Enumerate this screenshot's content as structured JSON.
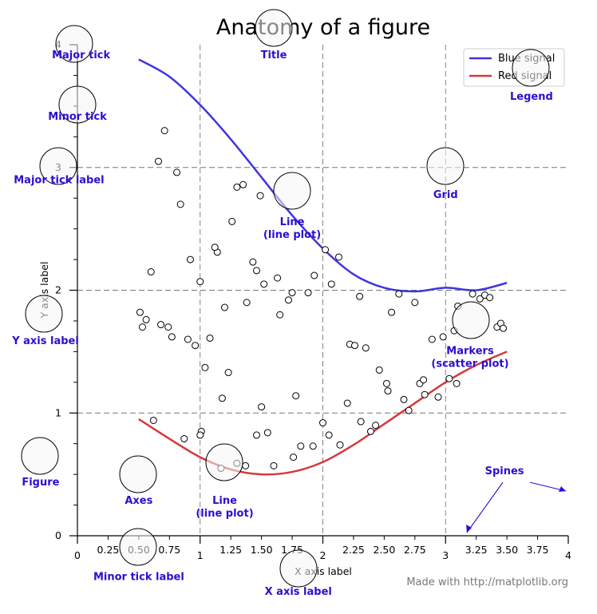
{
  "chart_data": {
    "type": "line",
    "title": "Anatomy of a figure",
    "xlabel": "X axis label",
    "ylabel": "Y axis label",
    "xlim": [
      0,
      4
    ],
    "ylim": [
      0,
      4
    ],
    "x_major_ticks": [
      0,
      1,
      2,
      3,
      4
    ],
    "x_major_tick_labels": [
      "0",
      "1",
      "2",
      "3",
      "4"
    ],
    "x_minor_ticks": [
      0.25,
      0.5,
      0.75,
      1.25,
      1.5,
      1.75,
      2.25,
      2.5,
      2.75,
      3.25,
      3.5,
      3.75
    ],
    "x_minor_tick_labels": [
      "0.25",
      "0.50",
      "0.75",
      "1.25",
      "1.50",
      "1.75",
      "2.25",
      "2.50",
      "2.75",
      "3.25",
      "3.50",
      "3.75"
    ],
    "y_major_ticks": [
      0,
      1,
      2,
      3,
      4
    ],
    "y_major_tick_labels": [
      "0",
      "1",
      "2",
      "3",
      "4"
    ],
    "y_minor_ticks": [
      0.25,
      0.5,
      0.75,
      1.25,
      1.5,
      1.75,
      2.25,
      2.5,
      2.75,
      3.25,
      3.5,
      3.75
    ],
    "grid": true,
    "legend_position": "top-right",
    "series": [
      {
        "name": "Blue signal",
        "kind": "line",
        "color": "#3f35e0",
        "x": [
          0.5,
          0.75,
          1.0,
          1.25,
          1.5,
          1.75,
          2.0,
          2.25,
          2.5,
          2.75,
          3.0,
          3.25,
          3.5
        ],
        "y": [
          3.88,
          3.74,
          3.51,
          3.23,
          2.92,
          2.61,
          2.34,
          2.13,
          2.02,
          1.99,
          2.02,
          2.0,
          2.06
        ]
      },
      {
        "name": "Red signal",
        "kind": "line",
        "color": "#d63a3a",
        "x": [
          0.5,
          0.75,
          1.0,
          1.25,
          1.5,
          1.75,
          2.0,
          2.25,
          2.5,
          2.75,
          3.0,
          3.25,
          3.5
        ],
        "y": [
          0.95,
          0.79,
          0.64,
          0.54,
          0.5,
          0.52,
          0.6,
          0.74,
          0.91,
          1.08,
          1.25,
          1.39,
          1.5
        ]
      },
      {
        "name": "",
        "kind": "scatter",
        "x": [
          0.71,
          0.66,
          0.81,
          0.84,
          0.6,
          0.92,
          1.0,
          1.14,
          1.26,
          1.3,
          1.35,
          1.49,
          1.38,
          1.43,
          1.46,
          1.52,
          1.65,
          1.72,
          1.75,
          1.63,
          1.5,
          1.18,
          1.01,
          0.51,
          0.56,
          0.68,
          0.74,
          0.53,
          0.77,
          0.9,
          0.96,
          1.04,
          1.08,
          1.12,
          1.23,
          1.2,
          1.37,
          1.6,
          1.78,
          1.88,
          1.93,
          2.02,
          2.07,
          2.13,
          2.22,
          2.26,
          2.3,
          2.35,
          2.46,
          2.52,
          2.56,
          2.62,
          2.75,
          2.79,
          2.82,
          2.89,
          2.98,
          3.03,
          3.09,
          3.22,
          3.28,
          3.32,
          3.36,
          3.42,
          3.45,
          3.47,
          3.1,
          3.07,
          2.94,
          2.83,
          2.7,
          2.66,
          2.53,
          2.43,
          2.39,
          2.31,
          2.2,
          2.14,
          2.05,
          2.0,
          1.92,
          1.82,
          1.76,
          1.55,
          1.46,
          1.3,
          1.17,
          0.87,
          0.62,
          1.0
        ],
        "y": [
          3.3,
          3.05,
          2.96,
          2.7,
          2.15,
          2.25,
          2.07,
          2.31,
          2.56,
          2.84,
          2.86,
          2.77,
          1.9,
          2.23,
          2.16,
          2.05,
          1.8,
          1.92,
          1.98,
          2.1,
          1.05,
          1.12,
          0.85,
          1.82,
          1.76,
          1.72,
          1.7,
          1.7,
          1.62,
          1.6,
          1.55,
          1.37,
          1.61,
          2.35,
          1.33,
          1.86,
          0.57,
          0.57,
          1.14,
          1.98,
          2.12,
          2.33,
          2.05,
          2.27,
          1.56,
          1.55,
          1.95,
          1.53,
          1.35,
          1.24,
          1.82,
          1.97,
          1.9,
          1.24,
          1.27,
          1.6,
          1.62,
          1.28,
          1.24,
          1.97,
          1.93,
          1.96,
          1.94,
          1.7,
          1.73,
          1.69,
          1.87,
          1.67,
          1.13,
          1.15,
          1.02,
          1.11,
          1.18,
          0.9,
          0.85,
          0.93,
          1.08,
          0.74,
          0.82,
          0.92,
          0.73,
          0.73,
          0.64,
          0.84,
          0.82,
          0.59,
          0.55,
          0.79,
          0.94,
          0.82
        ]
      }
    ],
    "annotations": [
      {
        "text": "Major tick",
        "label_x": 0.03,
        "label_y": 3.89
      },
      {
        "text": "Minor tick",
        "label_x": 0.0,
        "label_y": 3.39
      },
      {
        "text": "Major tick label",
        "label_x": -0.15,
        "label_y": 2.87
      },
      {
        "text": "Y axis label",
        "label_x": -0.26,
        "label_y": 1.56
      },
      {
        "text": "Figure",
        "label_x": -0.3,
        "label_y": 0.41
      },
      {
        "text": "Axes",
        "label_x": 0.5,
        "label_y": 0.26
      },
      {
        "text": "Minor tick label",
        "label_x": 0.5,
        "label_y": -0.36
      },
      {
        "text": "Title",
        "label_x": 1.6,
        "label_y": 3.89
      },
      {
        "text": "Line\n(line plot)",
        "label_x": 1.75,
        "label_y": 2.53
      },
      {
        "text": "Line\n(line plot)",
        "label_x": 1.2,
        "label_y": 0.26
      },
      {
        "text": "Grid",
        "label_x": 3.0,
        "label_y": 2.75
      },
      {
        "text": "Legend",
        "label_x": 3.7,
        "label_y": 3.55
      },
      {
        "text": "Markers\n(scatter plot)",
        "label_x": 3.2,
        "label_y": 1.48
      },
      {
        "text": "Spines",
        "label_x": 3.48,
        "label_y": 0.5
      },
      {
        "text": "X axis label",
        "label_x": 1.8,
        "label_y": -0.48
      }
    ],
    "credit": "Made with http://matplotlib.org"
  }
}
